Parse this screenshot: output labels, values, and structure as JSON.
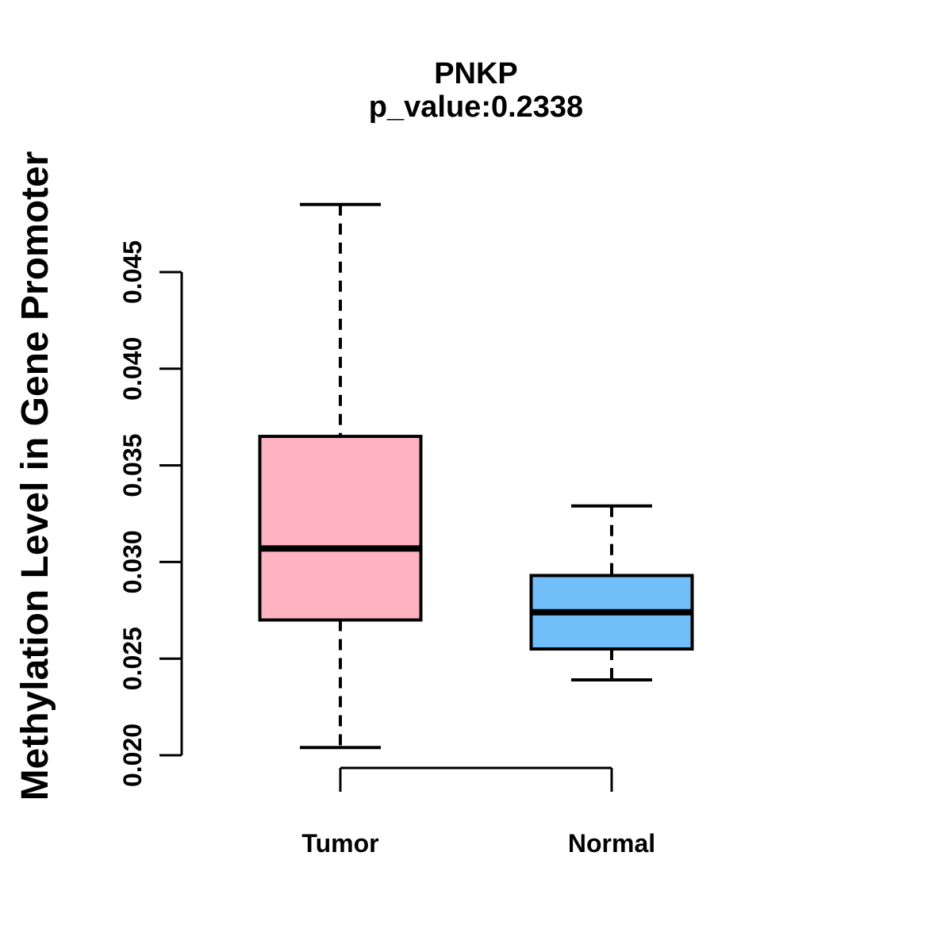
{
  "chart_data": {
    "type": "boxplot",
    "title": "PNKP",
    "subtitle": "p_value:0.2338",
    "ylabel": "Methylation Level in Gene Promoter",
    "xlabel": "",
    "ylim": [
      0.02,
      0.045
    ],
    "yticks": [
      0.02,
      0.025,
      0.03,
      0.035,
      0.04,
      0.045
    ],
    "ytick_labels": [
      "0.020",
      "0.025",
      "0.030",
      "0.035",
      "0.040",
      "0.045"
    ],
    "grid": false,
    "legend": "none",
    "categories": [
      "Tumor",
      "Normal"
    ],
    "series": [
      {
        "name": "Tumor",
        "fill": "#FFB3C1",
        "whisker_low": 0.0204,
        "q1": 0.027,
        "median": 0.0307,
        "q3": 0.0365,
        "whisker_high": 0.0485,
        "outliers": []
      },
      {
        "name": "Normal",
        "fill": "#71BEF8",
        "whisker_low": 0.0239,
        "q1": 0.0255,
        "median": 0.0274,
        "q3": 0.0293,
        "whisker_high": 0.0329,
        "outliers": []
      }
    ],
    "colors": {
      "tumor_fill": "#FFB3C1",
      "normal_fill": "#71BEF8",
      "line": "#000000",
      "background": "#FFFFFF"
    }
  }
}
